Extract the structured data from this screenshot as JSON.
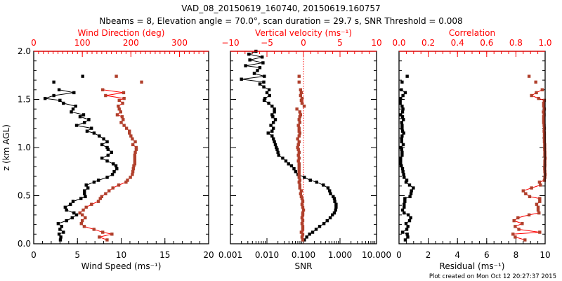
{
  "title": "VAD_08_20150619_160740, 20150619.160757",
  "subtitle": "Nbeams = 8, Elevation angle = 70.0°, scan duration = 29.7 s, SNR Threshold = 0.008",
  "y_axis": {
    "label": "z (km AGL)",
    "range": [
      0,
      2
    ],
    "ticks": [
      0,
      0.5,
      1.0,
      1.5,
      2.0
    ],
    "tick_labels": [
      "0.0",
      "0.5",
      "1.0",
      "1.5",
      "2.0"
    ]
  },
  "footer": "Plot created on Mon Oct 12 20:27:37 2015",
  "colors": {
    "primary": "#000000",
    "secondary_axis": "#ff0000",
    "secondary_marker": "#b0402c",
    "secondary_line": "#ff0000"
  },
  "heights_km": [
    0.04,
    0.07,
    0.1,
    0.12,
    0.15,
    0.18,
    0.21,
    0.24,
    0.27,
    0.3,
    0.32,
    0.35,
    0.38,
    0.41,
    0.44,
    0.47,
    0.49,
    0.52,
    0.55,
    0.58,
    0.61,
    0.64,
    0.66,
    0.69,
    0.72,
    0.75,
    0.78,
    0.81,
    0.83,
    0.86,
    0.89,
    0.92,
    0.95,
    0.98,
    1.0,
    1.03,
    1.06,
    1.09,
    1.12,
    1.15,
    1.17,
    1.2,
    1.23,
    1.26,
    1.29,
    1.32,
    1.34,
    1.37,
    1.4,
    1.43,
    1.46,
    1.49,
    1.51,
    1.54,
    1.57,
    1.6,
    1.63,
    1.66,
    1.68,
    1.71,
    1.74,
    1.77,
    1.8,
    1.83,
    1.85,
    1.88,
    1.91,
    1.94,
    1.97,
    2.0
  ],
  "chart_data": [
    {
      "type": "line",
      "bottom_axis": {
        "label": "Wind Speed (ms⁻¹)",
        "range": [
          0,
          20
        ],
        "scale": "linear",
        "ticks": [
          0,
          5,
          10,
          15,
          20
        ],
        "tick_labels": [
          "0",
          "5",
          "10",
          "15",
          "20"
        ],
        "minor_step": 1
      },
      "top_axis": {
        "label": "Wind Direction (deg)",
        "range": [
          0,
          360
        ],
        "scale": "linear",
        "ticks": [
          0,
          100,
          200,
          300
        ],
        "tick_labels": [
          "0",
          "100",
          "200",
          "300"
        ],
        "minor_step": 10
      },
      "zero_line": false,
      "series": [
        {
          "name": "Wind Speed",
          "axis": "bottom",
          "color": "black",
          "values": [
            3.05,
            3.1,
            2.9,
            3.4,
            3.0,
            3.2,
            2.8,
            3.75,
            4.4,
            4.9,
            4.6,
            3.75,
            3.6,
            4.2,
            4.5,
            5.4,
            5.9,
            5.8,
            5.8,
            6.2,
            6.0,
            6.9,
            7.4,
            8.4,
            9.0,
            9.2,
            9.5,
            9.4,
            9.1,
            8.4,
            7.8,
            8.5,
            8.9,
            8.5,
            8.4,
            7.8,
            8.4,
            8.0,
            7.5,
            6.9,
            6.1,
            6.6,
            4.9,
            5.8,
            6.3,
            5.3,
            5.7,
            4.3,
            4.5,
            4.8,
            3.4,
            3.0,
            1.3,
            2.3,
            4.6,
            2.9,
            null,
            null,
            2.3,
            null,
            5.6,
            null,
            null,
            null,
            null,
            null,
            null,
            null,
            null,
            null
          ]
        },
        {
          "name": "Wind Direction",
          "axis": "top",
          "color": "red",
          "values": [
            151,
            135,
            161,
            142,
            124,
            104,
            98,
            100,
            106,
            100,
            95,
            102,
            108,
            119,
            133,
            137,
            140,
            148,
            155,
            163,
            175,
            190,
            193,
            199,
            203,
            204,
            205,
            206,
            208,
            208,
            208,
            208,
            209,
            211,
            211,
            204,
            209,
            203,
            200,
            197,
            197,
            191,
            186,
            180,
            184,
            182,
            172,
            179,
            176,
            174,
            183,
            176,
            186,
            148,
            185,
            142,
            null,
            null,
            222,
            null,
            170,
            null,
            null,
            null,
            null,
            null,
            null,
            null,
            null,
            null
          ]
        }
      ]
    },
    {
      "type": "line",
      "bottom_axis": {
        "label": "SNR",
        "range": [
          0.001,
          10
        ],
        "scale": "log",
        "ticks": [
          0.001,
          0.01,
          0.1,
          1,
          10
        ],
        "tick_labels": [
          "0.001",
          "0.010",
          "0.100",
          "1.000",
          "10.000"
        ]
      },
      "top_axis": {
        "label": "Vertical velocity (ms⁻¹)",
        "range": [
          -10,
          10
        ],
        "scale": "linear",
        "ticks": [
          -10,
          -5,
          0,
          5,
          10
        ],
        "tick_labels": [
          "−10",
          "−5",
          "0",
          "5",
          "10"
        ],
        "minor_step": 1
      },
      "zero_line": true,
      "series": [
        {
          "name": "SNR",
          "axis": "bottom",
          "color": "black",
          "values": [
            0.106,
            0.123,
            0.147,
            0.178,
            0.222,
            0.277,
            0.363,
            0.446,
            0.54,
            0.62,
            0.7,
            0.76,
            0.78,
            0.78,
            0.72,
            0.7,
            0.65,
            0.55,
            0.52,
            0.47,
            0.35,
            0.23,
            0.154,
            0.106,
            0.071,
            0.061,
            0.055,
            0.047,
            0.039,
            0.033,
            0.027,
            0.021,
            0.02,
            0.019,
            0.018,
            0.017,
            0.016,
            0.015,
            0.0138,
            0.0108,
            0.0138,
            0.015,
            0.0128,
            0.015,
            0.017,
            0.0145,
            0.0138,
            0.016,
            0.016,
            0.0138,
            0.0112,
            0.0084,
            0.0088,
            0.0118,
            0.01,
            0.0115,
            0.0082,
            0.0064,
            0.0082,
            0.002,
            0.0085,
            0.0045,
            0.0055,
            0.0064,
            0.0026,
            0.0078,
            0.0034,
            0.0074,
            0.0032,
            0.005
          ]
        },
        {
          "name": "Vertical velocity",
          "axis": "top",
          "color": "red",
          "values": [
            -0.1,
            -0.2,
            -0.1,
            -0.3,
            -0.1,
            -0.1,
            -0.2,
            -0.1,
            -0.2,
            -0.1,
            -0.1,
            0.0,
            -0.1,
            -0.2,
            -0.1,
            -0.2,
            -0.3,
            -0.4,
            -0.3,
            -0.5,
            -0.5,
            -0.6,
            -0.5,
            -0.6,
            -0.6,
            -0.6,
            -0.6,
            -0.6,
            -0.6,
            -0.7,
            -0.6,
            -0.7,
            -0.6,
            -0.7,
            -0.8,
            -0.7,
            -0.6,
            -0.8,
            -0.6,
            -0.5,
            -0.6,
            -0.6,
            -0.7,
            -0.5,
            -0.6,
            -0.5,
            -0.4,
            -0.5,
            -0.9,
            0.1,
            -0.2,
            -0.3,
            -0.2,
            -0.4,
            -0.3,
            -0.4,
            null,
            null,
            -0.6,
            null,
            -0.6,
            null,
            null,
            null,
            null,
            null,
            null,
            null,
            null,
            null
          ],
          "connected": false
        }
      ]
    },
    {
      "type": "line",
      "bottom_axis": {
        "label": "Residual (ms⁻¹)",
        "range": [
          0,
          10
        ],
        "scale": "linear",
        "ticks": [
          0,
          2,
          4,
          6,
          8,
          10
        ],
        "tick_labels": [
          "0",
          "2",
          "4",
          "6",
          "8",
          "10"
        ],
        "minor_step": 0.5
      },
      "top_axis": {
        "label": "Correlation",
        "range": [
          0,
          1
        ],
        "scale": "linear",
        "ticks": [
          0,
          0.2,
          0.4,
          0.6,
          0.8,
          1.0
        ],
        "tick_labels": [
          "0.0",
          "0.2",
          "0.4",
          "0.6",
          "0.8",
          "1.0"
        ],
        "minor_step": 0.05
      },
      "zero_line": false,
      "series": [
        {
          "name": "Residual",
          "axis": "bottom",
          "color": "black",
          "values": [
            0.43,
            0.6,
            0.56,
            0.24,
            0.53,
            0.61,
            0.48,
            0.72,
            0.8,
            0.63,
            0.35,
            0.24,
            0.35,
            0.35,
            0.4,
            0.4,
            0.75,
            0.82,
            0.85,
            0.98,
            0.72,
            0.48,
            0.53,
            0.35,
            0.32,
            0.27,
            0.24,
            0.16,
            0.11,
            0.11,
            0.11,
            0.21,
            0.21,
            0.18,
            0.13,
            0.29,
            0.18,
            0.18,
            0.21,
            0.32,
            0.24,
            0.21,
            0.21,
            0.18,
            0.3,
            0.24,
            0.11,
            0.24,
            0.27,
            0.21,
            0.08,
            0.08,
            0.11,
            0.27,
            0.43,
            0.16,
            null,
            null,
            0.21,
            null,
            0.56,
            null,
            null,
            null,
            null,
            null,
            null,
            null,
            null,
            null
          ]
        },
        {
          "name": "Correlation",
          "axis": "top",
          "color": "red",
          "values": [
            0.862,
            0.795,
            0.78,
            0.963,
            0.82,
            0.795,
            0.843,
            0.787,
            0.814,
            0.89,
            0.958,
            0.952,
            0.952,
            0.942,
            0.963,
            0.963,
            0.894,
            0.867,
            0.85,
            0.907,
            0.968,
            0.961,
            0.995,
            0.998,
            1.0,
            0.998,
            0.997,
            0.998,
            0.998,
            0.998,
            1.0,
            0.998,
            0.998,
            0.997,
            0.997,
            0.997,
            0.995,
            0.995,
            0.995,
            0.995,
            0.993,
            0.995,
            0.993,
            0.99,
            0.99,
            0.99,
            0.993,
            0.988,
            0.995,
            0.99,
            0.99,
            0.995,
            0.955,
            0.907,
            0.94,
            0.98,
            null,
            null,
            0.936,
            null,
            0.89,
            null,
            null,
            null,
            null,
            null,
            null,
            null,
            null,
            null
          ]
        }
      ]
    }
  ]
}
